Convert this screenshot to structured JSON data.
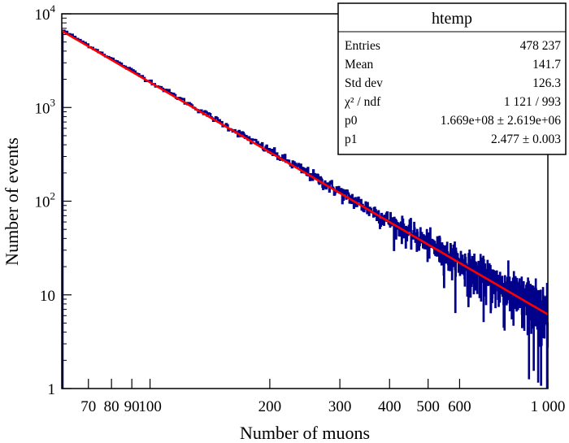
{
  "chart_data": {
    "type": "line",
    "x_scale": "log",
    "y_scale": "log",
    "xlabel": "Number of muons",
    "ylabel": "Number of events",
    "xlim": [
      60,
      1000
    ],
    "ylim": [
      1,
      10000
    ],
    "x_ticks": [
      {
        "value": 70,
        "label": "70"
      },
      {
        "value": 80,
        "label": "80"
      },
      {
        "value": 90,
        "label": "90"
      },
      {
        "value": 100,
        "label": "100"
      },
      {
        "value": 200,
        "label": "200"
      },
      {
        "value": 300,
        "label": "300"
      },
      {
        "value": 400,
        "label": "400"
      },
      {
        "value": 500,
        "label": "500"
      },
      {
        "value": 600,
        "label": "600"
      },
      {
        "value": 1000,
        "label": "1 000"
      }
    ],
    "y_ticks": [
      {
        "value": 1,
        "label": "1",
        "exp": ""
      },
      {
        "value": 10,
        "label": "10",
        "exp": ""
      },
      {
        "value": 100,
        "label": "10",
        "exp": "2"
      },
      {
        "value": 1000,
        "label": "10",
        "exp": "3"
      },
      {
        "value": 10000,
        "label": "10",
        "exp": "4"
      }
    ],
    "series": [
      {
        "name": "histogram",
        "color": "#00008b",
        "style": "step",
        "x_range": [
          60,
          1000
        ],
        "approx_points": [
          [
            60,
            6200
          ],
          [
            100,
            1720
          ],
          [
            200,
            225
          ],
          [
            300,
            84
          ],
          [
            400,
            40
          ],
          [
            500,
            22
          ],
          [
            600,
            15
          ],
          [
            1000,
            5.8
          ]
        ]
      },
      {
        "name": "power-law fit",
        "color": "#ff0000",
        "style": "line",
        "model": "p0 * x^(-p1)",
        "p0": 166900000.0,
        "p1": 2.477,
        "x_range": [
          60,
          1000
        ]
      }
    ],
    "stats_box": {
      "title": "htemp",
      "position": "top-right",
      "rows": [
        {
          "label": "Entries",
          "value": "478 237"
        },
        {
          "label": "Mean",
          "value": "141.7"
        },
        {
          "label": "Std dev",
          "value": "126.3"
        },
        {
          "label": "χ² / ndf",
          "value": "1 121 / 993"
        },
        {
          "label": "p0",
          "value": "1.669e+08 ± 2.619e+06"
        },
        {
          "label": "p1",
          "value": "2.477 ± 0.003"
        }
      ]
    }
  }
}
